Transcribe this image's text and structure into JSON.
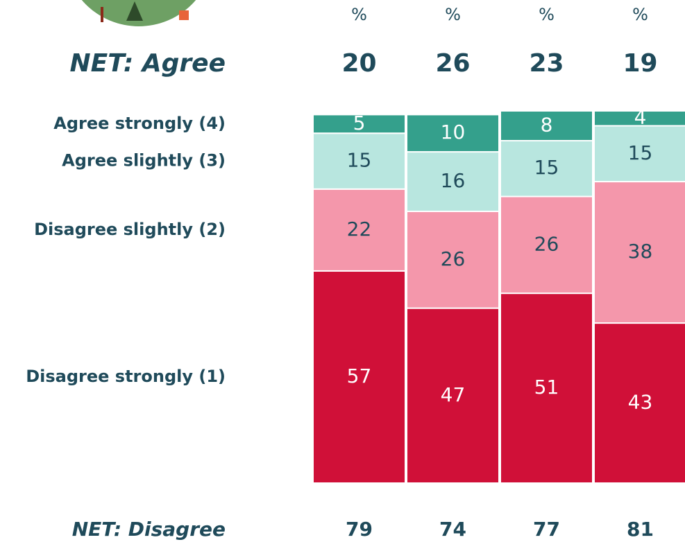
{
  "chart_data": {
    "type": "bar",
    "stacked": true,
    "categories": [
      null,
      null,
      null,
      null
    ],
    "unit_labels": [
      "%",
      "%",
      "%",
      "%"
    ],
    "net_agree": {
      "label": "NET: Agree",
      "values": [
        20,
        26,
        23,
        19
      ]
    },
    "net_disagree": {
      "label": "NET: Disagree",
      "values": [
        79,
        74,
        77,
        81
      ]
    },
    "ylim": [
      0,
      100
    ],
    "series": [
      {
        "name": "Disagree strongly (1)",
        "color": "#d01038",
        "label_color": "#ffffff",
        "values": [
          57,
          47,
          51,
          43
        ]
      },
      {
        "name": "Disagree slightly (2)",
        "color": "#f497ab",
        "label_color": "#1f4a5a",
        "values": [
          22,
          26,
          26,
          38
        ]
      },
      {
        "name": "Agree slightly (3)",
        "color": "#b8e6df",
        "label_color": "#1f4a5a",
        "values": [
          15,
          16,
          15,
          15
        ]
      },
      {
        "name": "Agree strongly (4)",
        "color": "#34a08c",
        "label_color": "#ffffff",
        "values": [
          5,
          10,
          8,
          4
        ]
      }
    ]
  }
}
